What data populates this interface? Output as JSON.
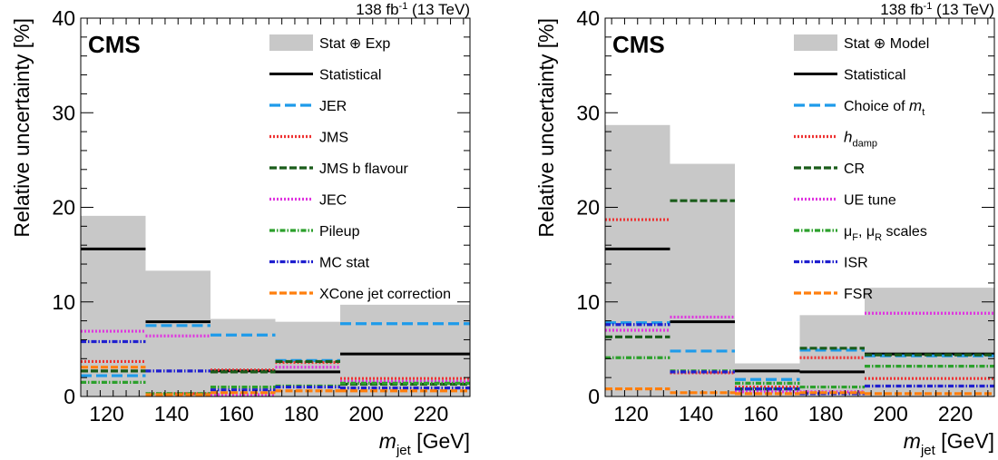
{
  "chart_data": [
    {
      "type": "bar",
      "lumi_label": "138 fb",
      "lumi_sup": "-1",
      "lumi_energy": " (13 TeV)",
      "experiment": "CMS",
      "ylabel": "Relative uncertainty [%]",
      "xlabel_main": "m",
      "xlabel_sub": "jet",
      "xlabel_unit": " [GeV]",
      "xlim": [
        112,
        232
      ],
      "ylim": [
        0,
        40
      ],
      "x_ticks": [
        120,
        140,
        160,
        180,
        200,
        220
      ],
      "y_ticks": [
        0,
        10,
        20,
        30,
        40
      ],
      "bin_edges": [
        112,
        132,
        152,
        172,
        192,
        232
      ],
      "legend_position": "top-right",
      "band": {
        "name": "Stat ⊕ Exp",
        "color": "#c8c8c8",
        "values": [
          19.1,
          13.3,
          8.2,
          7.9,
          9.7
        ]
      },
      "series": [
        {
          "name": "Statistical",
          "color": "#000000",
          "style": "solid",
          "values": [
            15.6,
            7.9,
            2.7,
            2.6,
            4.5
          ]
        },
        {
          "name": "JER",
          "color": "#1e9bea",
          "style": "longdash",
          "values": [
            2.2,
            7.5,
            6.5,
            3.8,
            7.7
          ]
        },
        {
          "name": "JMS",
          "color": "#ee3333",
          "style": "dot",
          "values": [
            3.7,
            0.3,
            2.8,
            3.6,
            1.9
          ]
        },
        {
          "name": "JMS b flavour",
          "color": "#1a5c1a",
          "style": "dash",
          "values": [
            2.7,
            0.2,
            2.6,
            3.7,
            1.3
          ]
        },
        {
          "name": "JEC",
          "color": "#e034e0",
          "style": "dot",
          "values": [
            6.9,
            6.4,
            0.2,
            3.1,
            1.6
          ]
        },
        {
          "name": "Pileup",
          "color": "#2ca02c",
          "style": "dashdot",
          "values": [
            1.5,
            0.3,
            1.0,
            1.1,
            1.4
          ]
        },
        {
          "name": "MC stat",
          "color": "#1f1fcf",
          "style": "dashdot",
          "values": [
            5.8,
            2.7,
            0.7,
            1.0,
            0.9
          ]
        },
        {
          "name": "XCone jet correction",
          "color": "#ff7f0e",
          "style": "dash",
          "values": [
            3.1,
            0.2,
            0.4,
            0.6,
            0.6
          ]
        }
      ]
    },
    {
      "type": "bar",
      "lumi_label": "138 fb",
      "lumi_sup": "-1",
      "lumi_energy": " (13 TeV)",
      "experiment": "CMS",
      "ylabel": "Relative uncertainty [%]",
      "xlabel_main": "m",
      "xlabel_sub": "jet",
      "xlabel_unit": " [GeV]",
      "xlim": [
        112,
        232
      ],
      "ylim": [
        0,
        40
      ],
      "x_ticks": [
        120,
        140,
        160,
        180,
        200,
        220
      ],
      "y_ticks": [
        0,
        10,
        20,
        30,
        40
      ],
      "bin_edges": [
        112,
        132,
        152,
        172,
        192,
        232
      ],
      "legend_position": "top-right",
      "band": {
        "name": "Stat ⊕ Model",
        "color": "#c8c8c8",
        "values": [
          28.7,
          24.6,
          3.5,
          8.6,
          11.5
        ]
      },
      "series": [
        {
          "name": "Statistical",
          "color": "#000000",
          "style": "solid",
          "values": [
            15.6,
            7.9,
            2.7,
            2.6,
            4.5
          ]
        },
        {
          "name": "Choice of ",
          "name_sym": "m",
          "name_sub": "t",
          "color": "#1e9bea",
          "style": "longdash",
          "values": [
            7.8,
            4.8,
            1.8,
            4.9,
            4.3
          ]
        },
        {
          "name": "",
          "name_sym": "h",
          "name_sub": "damp",
          "color": "#ee3333",
          "style": "dot",
          "values": [
            18.7,
            2.5,
            1.0,
            4.1,
            1.9
          ]
        },
        {
          "name": "CR",
          "color": "#1a5c1a",
          "style": "dash",
          "values": [
            6.3,
            20.7,
            0.8,
            5.1,
            4.4
          ]
        },
        {
          "name": "UE tune",
          "color": "#e034e0",
          "style": "dot",
          "values": [
            7.0,
            8.4,
            0.5,
            0.5,
            8.8
          ]
        },
        {
          "name": "μ_F, μ_R scales",
          "color": "#2ca02c",
          "style": "dashdot",
          "values": [
            4.1,
            2.7,
            1.4,
            1.0,
            3.2
          ]
        },
        {
          "name": "ISR",
          "color": "#1f1fcf",
          "style": "dashdot",
          "values": [
            7.6,
            2.6,
            0.8,
            0.3,
            1.1
          ]
        },
        {
          "name": "FSR",
          "color": "#ff7f0e",
          "style": "dash",
          "values": [
            0.8,
            0.4,
            0.3,
            0.4,
            0.3
          ]
        }
      ],
      "legend_rich": {
        "scales_mu1": "μ",
        "scales_sub1": "F",
        "scales_mu2": ", μ",
        "scales_sub2": "R",
        "scales_tail": " scales"
      }
    }
  ]
}
